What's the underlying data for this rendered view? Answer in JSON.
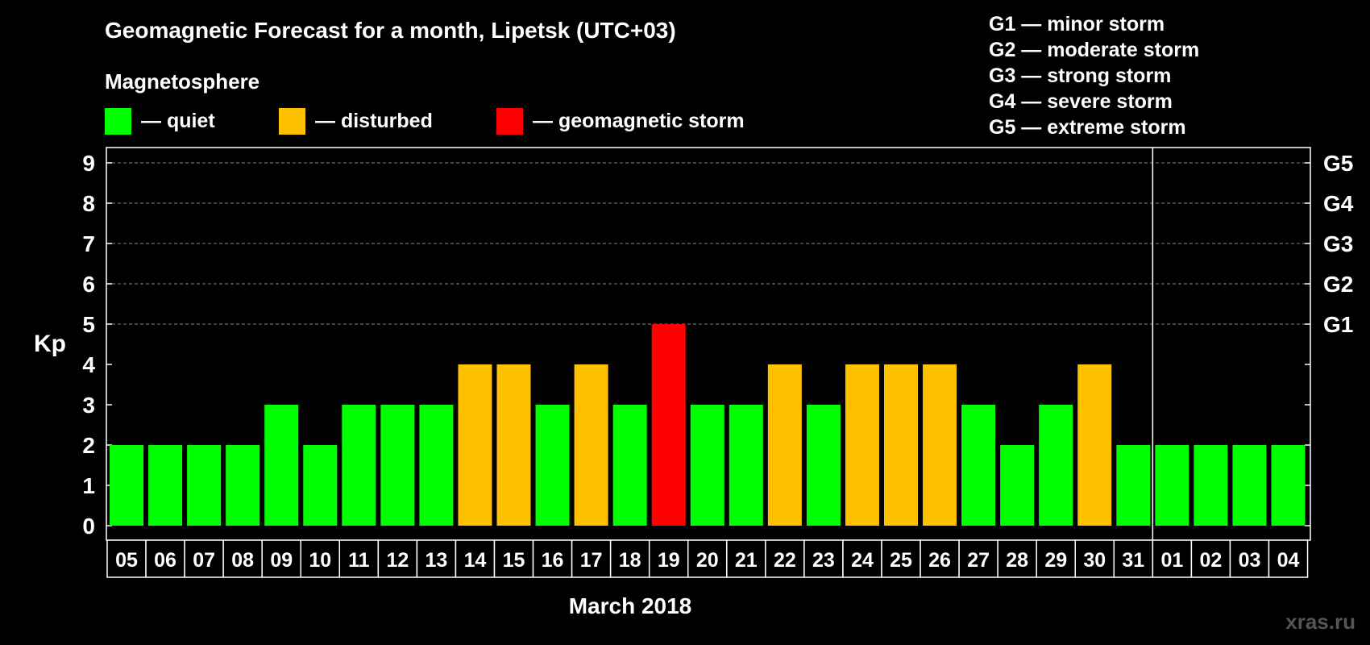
{
  "title": "Geomagnetic Forecast for a month, Lipetsk (UTC+03)",
  "subtitle": "Magnetosphere",
  "legend": [
    {
      "label": "— quiet",
      "color": "#00ff00"
    },
    {
      "label": "— disturbed",
      "color": "#ffc000"
    },
    {
      "label": "— geomagnetic storm",
      "color": "#ff0000"
    }
  ],
  "g_legend": [
    "G1 — minor storm",
    "G2 — moderate storm",
    "G3 — strong storm",
    "G4 — severe storm",
    "G5 — extreme storm"
  ],
  "watermark": "xras.ru",
  "colors": {
    "quiet": "#00ff00",
    "disturbed": "#ffc000",
    "storm": "#ff0000"
  },
  "chart_data": {
    "type": "bar",
    "xlabel": "March 2018",
    "ylabel": "Kp",
    "ylim": [
      0,
      9
    ],
    "yticks": [
      0,
      1,
      2,
      3,
      4,
      5,
      6,
      7,
      8,
      9
    ],
    "right_ticks": [
      {
        "value": 5,
        "label": "G1"
      },
      {
        "value": 6,
        "label": "G2"
      },
      {
        "value": 7,
        "label": "G3"
      },
      {
        "value": 8,
        "label": "G4"
      },
      {
        "value": 9,
        "label": "G5"
      }
    ],
    "grid": "dashed at 5-9",
    "month_separator_after": "31",
    "categories": [
      "05",
      "06",
      "07",
      "08",
      "09",
      "10",
      "11",
      "12",
      "13",
      "14",
      "15",
      "16",
      "17",
      "18",
      "19",
      "20",
      "21",
      "22",
      "23",
      "24",
      "25",
      "26",
      "27",
      "28",
      "29",
      "30",
      "31",
      "01",
      "02",
      "03",
      "04"
    ],
    "values": [
      2,
      2,
      2,
      2,
      3,
      2,
      3,
      3,
      3,
      4,
      4,
      3,
      4,
      3,
      5,
      3,
      3,
      4,
      3,
      4,
      4,
      4,
      3,
      2,
      3,
      4,
      2,
      2,
      2,
      2,
      2
    ],
    "status": [
      "quiet",
      "quiet",
      "quiet",
      "quiet",
      "quiet",
      "quiet",
      "quiet",
      "quiet",
      "quiet",
      "disturbed",
      "disturbed",
      "quiet",
      "disturbed",
      "quiet",
      "storm",
      "quiet",
      "quiet",
      "disturbed",
      "quiet",
      "disturbed",
      "disturbed",
      "disturbed",
      "quiet",
      "quiet",
      "quiet",
      "disturbed",
      "quiet",
      "quiet",
      "quiet",
      "quiet",
      "quiet"
    ]
  }
}
